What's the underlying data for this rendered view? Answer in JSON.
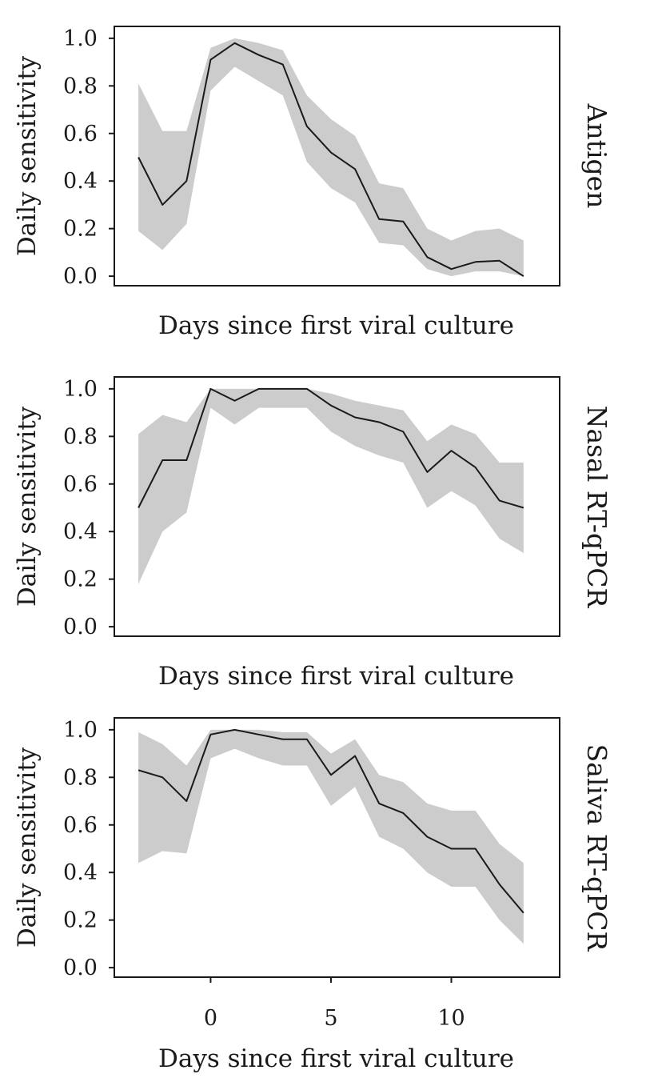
{
  "chart_data": [
    {
      "type": "line",
      "panel_label": "Antigen",
      "xlabel": "Days since first viral culture",
      "ylabel": "Daily sensitivity",
      "xlim": [
        -4,
        14.5
      ],
      "ylim": [
        -0.04,
        1.05
      ],
      "yticks": [
        "0.0",
        "0.2",
        "0.4",
        "0.6",
        "0.8",
        "1.0"
      ],
      "xticks": [],
      "x": [
        -3,
        -2,
        -1,
        0,
        1,
        2,
        3,
        4,
        5,
        6,
        7,
        8,
        9,
        10,
        11,
        12,
        13
      ],
      "series": [
        {
          "values": [
            0.5,
            0.3,
            0.4,
            0.91,
            0.98,
            0.93,
            0.89,
            0.63,
            0.52,
            0.45,
            0.24,
            0.23,
            0.08,
            0.03,
            0.06,
            0.065,
            0.0
          ],
          "lower": [
            0.19,
            0.11,
            0.22,
            0.78,
            0.88,
            0.82,
            0.76,
            0.48,
            0.37,
            0.31,
            0.14,
            0.13,
            0.03,
            0.0,
            0.02,
            0.02,
            0.0
          ],
          "upper": [
            0.81,
            0.61,
            0.61,
            0.96,
            1.0,
            0.98,
            0.95,
            0.76,
            0.66,
            0.59,
            0.39,
            0.37,
            0.2,
            0.15,
            0.19,
            0.2,
            0.15
          ]
        }
      ]
    },
    {
      "type": "line",
      "panel_label": "Nasal RT-qPCR",
      "xlabel": "Days since first viral culture",
      "ylabel": "Daily sensitivity",
      "xlim": [
        -4,
        14.5
      ],
      "ylim": [
        -0.04,
        1.05
      ],
      "yticks": [
        "0.0",
        "0.2",
        "0.4",
        "0.6",
        "0.8",
        "1.0"
      ],
      "xticks": [],
      "x": [
        -3,
        -2,
        -1,
        0,
        1,
        2,
        3,
        4,
        5,
        6,
        7,
        8,
        9,
        10,
        11,
        12,
        13
      ],
      "series": [
        {
          "values": [
            0.5,
            0.7,
            0.7,
            1.0,
            0.95,
            1.0,
            1.0,
            1.0,
            0.93,
            0.88,
            0.86,
            0.82,
            0.65,
            0.74,
            0.67,
            0.53,
            0.5
          ],
          "lower": [
            0.18,
            0.4,
            0.48,
            0.92,
            0.85,
            0.92,
            0.92,
            0.92,
            0.82,
            0.76,
            0.72,
            0.69,
            0.5,
            0.57,
            0.51,
            0.37,
            0.31
          ],
          "upper": [
            0.81,
            0.89,
            0.86,
            1.0,
            1.0,
            1.0,
            1.0,
            1.0,
            0.98,
            0.95,
            0.93,
            0.91,
            0.78,
            0.85,
            0.81,
            0.69,
            0.69
          ]
        }
      ]
    },
    {
      "type": "line",
      "panel_label": "Saliva RT-qPCR",
      "xlabel": "Days since first viral culture",
      "ylabel": "Daily sensitivity",
      "xlim": [
        -4,
        14.5
      ],
      "ylim": [
        -0.04,
        1.05
      ],
      "yticks": [
        "0.0",
        "0.2",
        "0.4",
        "0.6",
        "0.8",
        "1.0"
      ],
      "xticks": [
        "0",
        "5",
        "10"
      ],
      "x": [
        -3,
        -2,
        -1,
        0,
        1,
        2,
        3,
        4,
        5,
        6,
        7,
        8,
        9,
        10,
        11,
        12,
        13
      ],
      "series": [
        {
          "values": [
            0.83,
            0.8,
            0.7,
            0.98,
            1.0,
            0.98,
            0.96,
            0.96,
            0.81,
            0.89,
            0.69,
            0.65,
            0.55,
            0.5,
            0.5,
            0.35,
            0.23
          ],
          "lower": [
            0.44,
            0.49,
            0.48,
            0.88,
            0.92,
            0.88,
            0.85,
            0.85,
            0.68,
            0.76,
            0.55,
            0.5,
            0.4,
            0.34,
            0.34,
            0.2,
            0.1
          ],
          "upper": [
            0.99,
            0.94,
            0.85,
            1.0,
            1.0,
            1.0,
            0.99,
            0.99,
            0.9,
            0.96,
            0.81,
            0.78,
            0.69,
            0.66,
            0.66,
            0.52,
            0.44
          ]
        }
      ]
    }
  ]
}
